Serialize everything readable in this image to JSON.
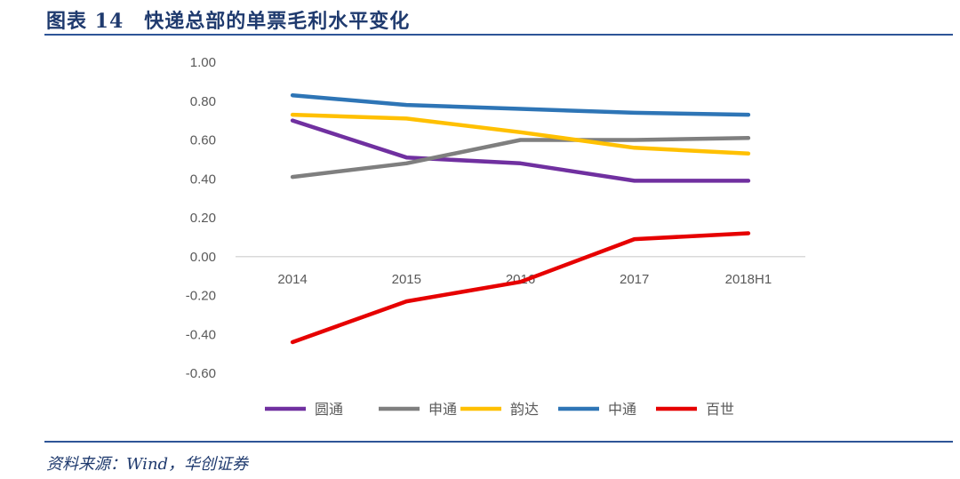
{
  "header": {
    "title": "图表 14　快递总部的单票毛利水平变化"
  },
  "footer": {
    "source": "资料来源：Wind，华创证券"
  },
  "chart_data": {
    "type": "line",
    "title": "快递总部的单票毛利水平变化",
    "xlabel": "",
    "ylabel": "",
    "categories": [
      "2014",
      "2015",
      "2016",
      "2017",
      "2018H1"
    ],
    "ylim": [
      -0.6,
      1.0
    ],
    "yticks": [
      "1.00",
      "0.80",
      "0.60",
      "0.40",
      "0.20",
      "0.00",
      "-0.20",
      "-0.40",
      "-0.60"
    ],
    "ytick_values": [
      1.0,
      0.8,
      0.6,
      0.4,
      0.2,
      0.0,
      -0.2,
      -0.4,
      -0.6
    ],
    "grid": false,
    "legend_position": "bottom",
    "series": [
      {
        "name": "圆通",
        "color": "#7030a0",
        "values": [
          0.7,
          0.51,
          0.48,
          0.39,
          0.39
        ]
      },
      {
        "name": "申通",
        "color": "#7f7f7f",
        "values": [
          0.41,
          0.48,
          0.6,
          0.6,
          0.61
        ]
      },
      {
        "name": "韵达",
        "color": "#ffc000",
        "values": [
          0.73,
          0.71,
          0.64,
          0.56,
          0.53
        ]
      },
      {
        "name": "中通",
        "color": "#2e75b6",
        "values": [
          0.83,
          0.78,
          0.76,
          0.74,
          0.73
        ]
      },
      {
        "name": "百世",
        "color": "#e60000",
        "values": [
          -0.44,
          -0.23,
          -0.13,
          0.09,
          0.12
        ]
      }
    ]
  }
}
